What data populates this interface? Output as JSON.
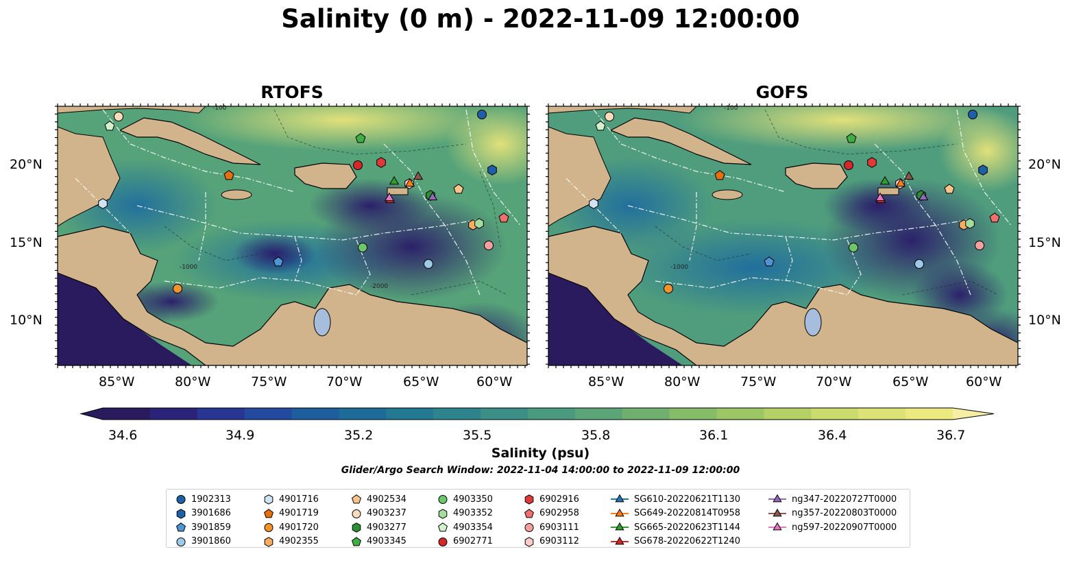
{
  "title": "Salinity (0 m) - 2022-11-09 12:00:00",
  "panels": [
    {
      "title": "RTOFS"
    },
    {
      "title": "GOFS"
    }
  ],
  "map": {
    "lat_ticks": [
      "20°N",
      "15°N",
      "10°N"
    ],
    "lon_ticks": [
      "85°W",
      "80°W",
      "75°W",
      "70°W",
      "65°W",
      "60°W"
    ],
    "land_color": "#d2b48c",
    "lake_color": "#a6bddb",
    "contour_labels": [
      "-100",
      "-1000",
      "-2000"
    ]
  },
  "colorbar": {
    "ticks": [
      "34.6",
      "34.9",
      "35.2",
      "35.5",
      "35.8",
      "36.1",
      "36.4",
      "36.7"
    ],
    "label": "Salinity (psu)",
    "colors": [
      "#2a1a5e",
      "#2b2379",
      "#283592",
      "#234a9e",
      "#1e5d9e",
      "#1d6b98",
      "#237892",
      "#2e848c",
      "#3b8f86",
      "#4a9a7f",
      "#5ca577",
      "#70b06f",
      "#86bb68",
      "#9dc665",
      "#b5d166",
      "#cbdc6c",
      "#dce374",
      "#ece97f"
    ]
  },
  "search_window": "Glider/Argo Search Window: 2022-11-04 14:00:00 to 2022-11-09 12:00:00",
  "legend": {
    "items": [
      {
        "label": "1902313",
        "marker": "circle",
        "color": "#1f5fa8"
      },
      {
        "label": "3901686",
        "marker": "hexagon",
        "color": "#1f5fa8"
      },
      {
        "label": "3901859",
        "marker": "pentagon",
        "color": "#4f95d6"
      },
      {
        "label": "3901860",
        "marker": "circle",
        "color": "#9ecae9"
      },
      {
        "label": "4901716",
        "marker": "hexagon",
        "color": "#cfe3f3"
      },
      {
        "label": "4901719",
        "marker": "pentagon",
        "color": "#e6700f"
      },
      {
        "label": "4901720",
        "marker": "circle",
        "color": "#f2922b"
      },
      {
        "label": "4902355",
        "marker": "hexagon",
        "color": "#f7ac62"
      },
      {
        "label": "4902534",
        "marker": "pentagon",
        "color": "#fbc48c"
      },
      {
        "label": "4903237",
        "marker": "circle",
        "color": "#fcdcbc"
      },
      {
        "label": "4903277",
        "marker": "hexagon",
        "color": "#2a9132"
      },
      {
        "label": "4903345",
        "marker": "pentagon",
        "color": "#3fae43"
      },
      {
        "label": "4903350",
        "marker": "circle",
        "color": "#6cc76a"
      },
      {
        "label": "4903352",
        "marker": "hexagon",
        "color": "#a3dd9d"
      },
      {
        "label": "4903354",
        "marker": "pentagon",
        "color": "#d2f0cb"
      },
      {
        "label": "6902771",
        "marker": "circle",
        "color": "#d62728"
      },
      {
        "label": "6902916",
        "marker": "hexagon",
        "color": "#e0393a"
      },
      {
        "label": "6902958",
        "marker": "pentagon",
        "color": "#f07070"
      },
      {
        "label": "6903111",
        "marker": "circle",
        "color": "#f4a09e"
      },
      {
        "label": "6903112",
        "marker": "hexagon",
        "color": "#fbcaca"
      },
      {
        "label": "SG610-20220621T1130",
        "marker": "triangle",
        "color": "#1f77b4"
      },
      {
        "label": "SG649-20220814T0958",
        "marker": "triangle",
        "color": "#ff7f0e"
      },
      {
        "label": "SG665-20220623T1144",
        "marker": "triangle",
        "color": "#2ca02c"
      },
      {
        "label": "SG678-20220622T1240",
        "marker": "triangle",
        "color": "#d62728"
      },
      {
        "label": "ng347-20220727T0000",
        "marker": "triangle",
        "color": "#9467bd"
      },
      {
        "label": "ng357-20220803T0000",
        "marker": "triangle",
        "color": "#8c564b"
      },
      {
        "label": "ng597-20220907T0000",
        "marker": "triangle",
        "color": "#e377c2"
      }
    ]
  }
}
